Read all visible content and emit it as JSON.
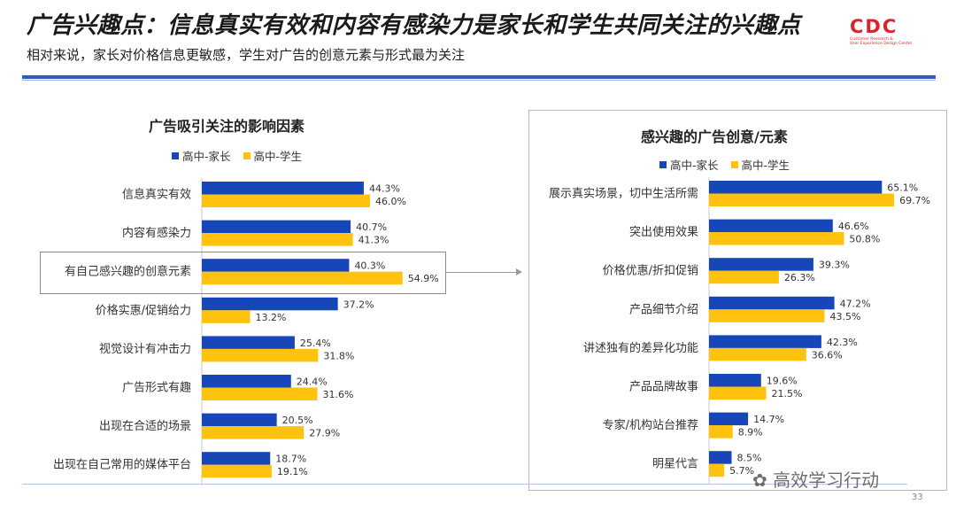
{
  "header": {
    "title": "广告兴趣点：信息真实有效和内容有感染力是家长和学生共同关注的兴趣点",
    "subtitle": "相对来说，家长对价格信息更敏感，学生对广告的创意元素与形式最为关注"
  },
  "logo": {
    "mark": "CDC",
    "sub_line1": "Customer Research &",
    "sub_line2": "User Experience Design Center"
  },
  "colors": {
    "parent": "#1746b8",
    "student": "#ffc20e"
  },
  "chart_data": [
    {
      "type": "bar",
      "orientation": "horizontal",
      "title": "广告吸引关注的影响因素",
      "legend": [
        "高中-家长",
        "高中-学生"
      ],
      "legend_position": "top-left",
      "categories": [
        "信息真实有效",
        "内容有感染力",
        "有自己感兴趣的创意元素",
        "价格实惠/促销给力",
        "视觉设计有冲击力",
        "广告形式有趣",
        "出现在合适的场景",
        "出现在自己常用的媒体平台"
      ],
      "series": [
        {
          "name": "高中-家长",
          "values": [
            44.3,
            40.7,
            40.3,
            37.2,
            25.4,
            24.4,
            20.5,
            18.7
          ],
          "labels": [
            "44.3%",
            "40.7%",
            "40.3%",
            "37.2%",
            "25.4%",
            "24.4%",
            "20.5%",
            "18.7%"
          ]
        },
        {
          "name": "高中-学生",
          "values": [
            46.0,
            41.3,
            54.9,
            13.2,
            31.8,
            31.6,
            27.9,
            19.1
          ],
          "labels": [
            "46.0%",
            "41.3%",
            "54.9%",
            "13.2%",
            "31.8%",
            "31.6%",
            "27.9%",
            "19.1%"
          ]
        }
      ],
      "highlight_category": "有自己感兴趣的创意元素"
    },
    {
      "type": "bar",
      "orientation": "horizontal",
      "title": "感兴趣的广告创意/元素",
      "legend": [
        "高中-家长",
        "高中-学生"
      ],
      "legend_position": "top-left",
      "categories": [
        "展示真实场景，切中生活所需",
        "突出使用效果",
        "价格优惠/折扣促销",
        "产品细节介绍",
        "讲述独有的差异化功能",
        "产品品牌故事",
        "专家/机构站台推荐",
        "明星代言"
      ],
      "series": [
        {
          "name": "高中-家长",
          "values": [
            65.1,
            46.6,
            39.3,
            47.2,
            42.3,
            19.6,
            14.7,
            8.5
          ],
          "labels": [
            "65.1%",
            "46.6%",
            "39.3%",
            "47.2%",
            "42.3%",
            "19.6%",
            "14.7%",
            "8.5%"
          ]
        },
        {
          "name": "高中-学生",
          "values": [
            69.7,
            50.8,
            26.3,
            43.5,
            36.6,
            21.5,
            8.9,
            5.7
          ],
          "labels": [
            "69.7%",
            "50.8%",
            "26.3%",
            "43.5%",
            "36.6%",
            "21.5%",
            "8.9%",
            "5.7%"
          ]
        }
      ]
    }
  ],
  "watermark": "高效学习行动",
  "page_number": "33"
}
